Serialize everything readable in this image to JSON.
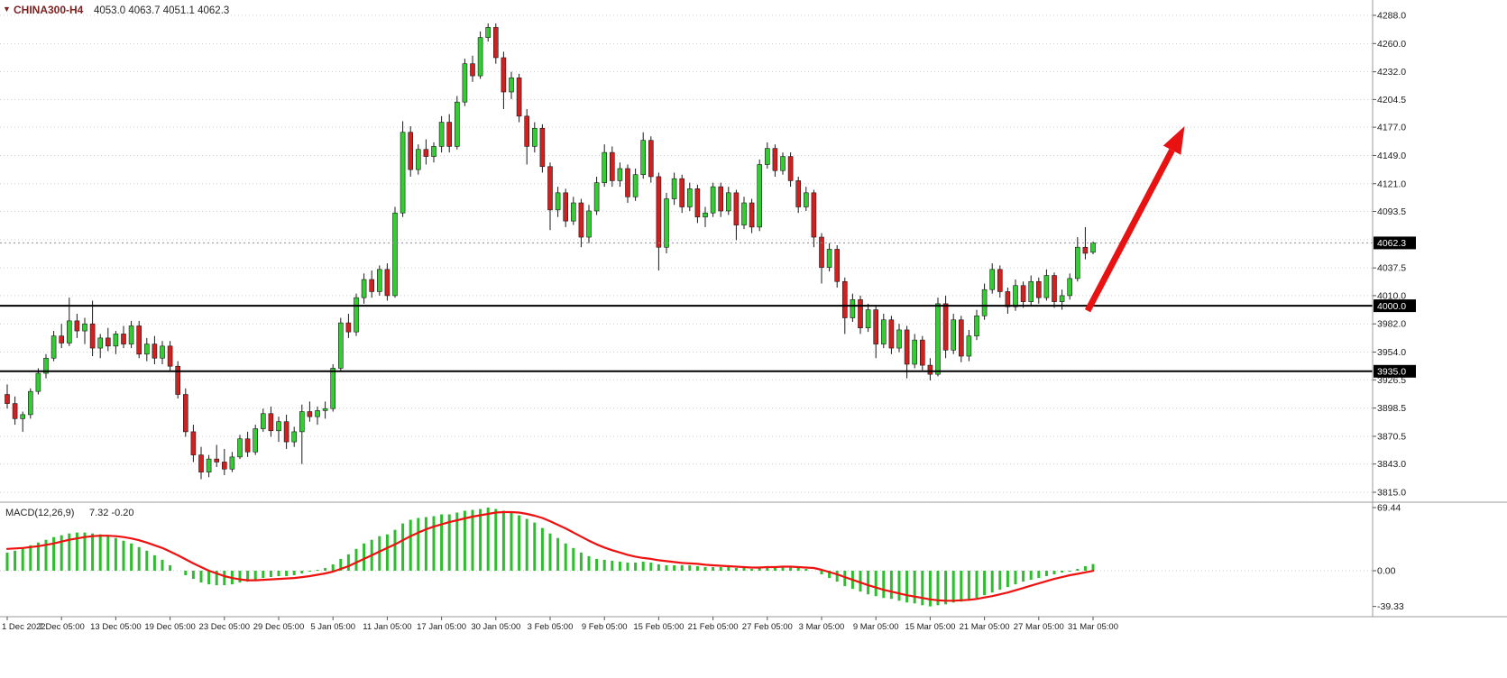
{
  "header": {
    "marker": "▼",
    "symbol": "CHINA300-H4",
    "ohlc_text": "4053.0 4063.7 4051.1 4062.3"
  },
  "macd_header": {
    "label": "MACD(12,26,9)",
    "values_text": "7.32 -0.20"
  },
  "chart_data": [
    {
      "id": "price",
      "type": "candlestick",
      "title": "CHINA300-H4",
      "symbol": "CHINA300",
      "timeframe": "H4",
      "last_ohlc": {
        "open": 4053.0,
        "high": 4063.7,
        "low": 4051.1,
        "close": 4062.3
      },
      "current_price": 4062.3,
      "horizontal_levels": [
        4000.0,
        3935.0
      ],
      "colors": {
        "up": "#33cc33",
        "down": "#d02020",
        "outline": "#1a1a1a",
        "level_line": "#000000",
        "arrow": "#e81212"
      },
      "y_axis": {
        "min": 3815,
        "max": 4288,
        "ticks": [
          {
            "label": "4288.0",
            "value": 4288
          },
          {
            "label": "4260.0",
            "value": 4260
          },
          {
            "label": "4232.0",
            "value": 4232
          },
          {
            "label": "4204.5",
            "value": 4204.5
          },
          {
            "label": "4177.0",
            "value": 4177
          },
          {
            "label": "4149.0",
            "value": 4149
          },
          {
            "label": "4121.0",
            "value": 4121
          },
          {
            "label": "4093.5",
            "value": 4093.5
          },
          {
            "label": "",
            "value": 4065.5
          },
          {
            "label": "4037.5",
            "value": 4037.5
          },
          {
            "label": "4010.0",
            "value": 4010
          },
          {
            "label": "3982.0",
            "value": 3982
          },
          {
            "label": "3954.0",
            "value": 3954
          },
          {
            "label": "3926.5",
            "value": 3926.5
          },
          {
            "label": "3898.5",
            "value": 3898.5
          },
          {
            "label": "3870.5",
            "value": 3870.5
          },
          {
            "label": "3843.0",
            "value": 3843
          },
          {
            "label": "3815.0",
            "value": 3815
          }
        ],
        "tags": [
          {
            "label": "4062.3",
            "value": 4062.3,
            "kind": "current-price"
          },
          {
            "label": "4000.0",
            "value": 4000,
            "kind": "level-4000"
          },
          {
            "label": "3935.0",
            "value": 3935,
            "kind": "level-3935"
          }
        ]
      },
      "x_labels": [
        "1 Dec 2022",
        "7 Dec 05:00",
        "13 Dec 05:00",
        "19 Dec 05:00",
        "23 Dec 05:00",
        "29 Dec 05:00",
        "5 Jan 05:00",
        "11 Jan 05:00",
        "17 Jan 05:00",
        "30 Jan 05:00",
        "3 Feb 05:00",
        "9 Feb 05:00",
        "15 Feb 05:00",
        "21 Feb 05:00",
        "27 Feb 05:00",
        "3 Mar 05:00",
        "9 Mar 05:00",
        "15 Mar 05:00",
        "21 Mar 05:00",
        "27 Mar 05:00",
        "31 Mar 05:00"
      ],
      "annotations": {
        "trend_arrow": {
          "from_index": 139.3,
          "from_price": 3995,
          "to_index": 151.8,
          "to_price": 4178,
          "color": "#e81212",
          "meaning": "bullish projection from 4000 support"
        }
      },
      "candles": [
        [
          3912,
          3922,
          3898,
          3903
        ],
        [
          3903,
          3910,
          3882,
          3888
        ],
        [
          3888,
          3895,
          3875,
          3892
        ],
        [
          3892,
          3918,
          3888,
          3915
        ],
        [
          3915,
          3938,
          3912,
          3933
        ],
        [
          3933,
          3952,
          3928,
          3948
        ],
        [
          3948,
          3975,
          3945,
          3970
        ],
        [
          3970,
          3982,
          3958,
          3963
        ],
        [
          3963,
          4008,
          3960,
          3985
        ],
        [
          3985,
          3992,
          3968,
          3975
        ],
        [
          3975,
          3988,
          3962,
          3982
        ],
        [
          3982,
          4005,
          3950,
          3958
        ],
        [
          3958,
          3972,
          3948,
          3968
        ],
        [
          3968,
          3978,
          3955,
          3960
        ],
        [
          3960,
          3975,
          3952,
          3972
        ],
        [
          3972,
          3980,
          3958,
          3962
        ],
        [
          3962,
          3985,
          3958,
          3980
        ],
        [
          3980,
          3985,
          3948,
          3952
        ],
        [
          3952,
          3968,
          3945,
          3962
        ],
        [
          3962,
          3970,
          3942,
          3948
        ],
        [
          3948,
          3965,
          3942,
          3960
        ],
        [
          3960,
          3965,
          3935,
          3940
        ],
        [
          3940,
          3945,
          3908,
          3912
        ],
        [
          3912,
          3918,
          3870,
          3875
        ],
        [
          3875,
          3882,
          3845,
          3852
        ],
        [
          3852,
          3860,
          3828,
          3835
        ],
        [
          3835,
          3852,
          3830,
          3848
        ],
        [
          3848,
          3862,
          3840,
          3845
        ],
        [
          3845,
          3858,
          3832,
          3838
        ],
        [
          3838,
          3855,
          3835,
          3850
        ],
        [
          3850,
          3872,
          3848,
          3868
        ],
        [
          3868,
          3875,
          3850,
          3855
        ],
        [
          3855,
          3882,
          3852,
          3878
        ],
        [
          3878,
          3898,
          3875,
          3893
        ],
        [
          3893,
          3900,
          3870,
          3876
        ],
        [
          3876,
          3890,
          3865,
          3885
        ],
        [
          3885,
          3892,
          3858,
          3865
        ],
        [
          3865,
          3880,
          3860,
          3875
        ],
        [
          3875,
          3902,
          3843,
          3895
        ],
        [
          3895,
          3905,
          3885,
          3890
        ],
        [
          3890,
          3900,
          3882,
          3896
        ],
        [
          3896,
          3905,
          3888,
          3898
        ],
        [
          3898,
          3942,
          3895,
          3938
        ],
        [
          3938,
          3988,
          3935,
          3983
        ],
        [
          3983,
          3992,
          3968,
          3974
        ],
        [
          3974,
          4012,
          3970,
          4008
        ],
        [
          4008,
          4032,
          4002,
          4026
        ],
        [
          4026,
          4035,
          4008,
          4014
        ],
        [
          4014,
          4040,
          4010,
          4036
        ],
        [
          4036,
          4042,
          4005,
          4010
        ],
        [
          4010,
          4098,
          4008,
          4092
        ],
        [
          4092,
          4183,
          4088,
          4172
        ],
        [
          4172,
          4178,
          4128,
          4135
        ],
        [
          4135,
          4160,
          4130,
          4155
        ],
        [
          4155,
          4165,
          4140,
          4148
        ],
        [
          4148,
          4162,
          4142,
          4158
        ],
        [
          4158,
          4188,
          4152,
          4182
        ],
        [
          4182,
          4190,
          4152,
          4158
        ],
        [
          4158,
          4208,
          4155,
          4202
        ],
        [
          4202,
          4245,
          4198,
          4240
        ],
        [
          4240,
          4248,
          4222,
          4228
        ],
        [
          4228,
          4272,
          4225,
          4266
        ],
        [
          4266,
          4280,
          4262,
          4276
        ],
        [
          4276,
          4280,
          4240,
          4246
        ],
        [
          4246,
          4252,
          4195,
          4212
        ],
        [
          4212,
          4232,
          4205,
          4226
        ],
        [
          4226,
          4230,
          4182,
          4188
        ],
        [
          4188,
          4195,
          4140,
          4158
        ],
        [
          4158,
          4182,
          4152,
          4176
        ],
        [
          4176,
          4180,
          4132,
          4138
        ],
        [
          4138,
          4142,
          4075,
          4095
        ],
        [
          4095,
          4118,
          4088,
          4112
        ],
        [
          4112,
          4116,
          4078,
          4084
        ],
        [
          4084,
          4108,
          4080,
          4102
        ],
        [
          4102,
          4106,
          4058,
          4068
        ],
        [
          4068,
          4100,
          4062,
          4094
        ],
        [
          4094,
          4128,
          4090,
          4122
        ],
        [
          4122,
          4160,
          4118,
          4152
        ],
        [
          4152,
          4158,
          4118,
          4124
        ],
        [
          4124,
          4142,
          4118,
          4136
        ],
        [
          4136,
          4140,
          4102,
          4108
        ],
        [
          4108,
          4136,
          4104,
          4130
        ],
        [
          4130,
          4172,
          4126,
          4164
        ],
        [
          4164,
          4168,
          4122,
          4128
        ],
        [
          4128,
          4132,
          4035,
          4058
        ],
        [
          4058,
          4112,
          4052,
          4106
        ],
        [
          4106,
          4132,
          4100,
          4126
        ],
        [
          4126,
          4130,
          4092,
          4098
        ],
        [
          4098,
          4122,
          4094,
          4116
        ],
        [
          4116,
          4120,
          4082,
          4088
        ],
        [
          4088,
          4098,
          4078,
          4092
        ],
        [
          4092,
          4122,
          4088,
          4118
        ],
        [
          4118,
          4122,
          4088,
          4094
        ],
        [
          4094,
          4118,
          4090,
          4112
        ],
        [
          4112,
          4115,
          4065,
          4080
        ],
        [
          4080,
          4108,
          4076,
          4102
        ],
        [
          4102,
          4106,
          4072,
          4078
        ],
        [
          4078,
          4145,
          4074,
          4140
        ],
        [
          4140,
          4162,
          4136,
          4156
        ],
        [
          4156,
          4160,
          4128,
          4134
        ],
        [
          4134,
          4152,
          4130,
          4148
        ],
        [
          4148,
          4152,
          4118,
          4124
        ],
        [
          4124,
          4128,
          4092,
          4098
        ],
        [
          4098,
          4118,
          4094,
          4112
        ],
        [
          4112,
          4115,
          4058,
          4068
        ],
        [
          4068,
          4072,
          4022,
          4038
        ],
        [
          4038,
          4062,
          4034,
          4056
        ],
        [
          4056,
          4060,
          4018,
          4024
        ],
        [
          4024,
          4028,
          3972,
          3988
        ],
        [
          3988,
          4012,
          3984,
          4006
        ],
        [
          4006,
          4010,
          3972,
          3978
        ],
        [
          3978,
          4002,
          3974,
          3996
        ],
        [
          3996,
          4000,
          3948,
          3962
        ],
        [
          3962,
          3992,
          3958,
          3986
        ],
        [
          3986,
          3990,
          3952,
          3958
        ],
        [
          3958,
          3982,
          3954,
          3976
        ],
        [
          3976,
          3980,
          3928,
          3942
        ],
        [
          3942,
          3972,
          3938,
          3966
        ],
        [
          3966,
          3970,
          3936,
          3941
        ],
        [
          3941,
          3948,
          3926,
          3932
        ],
        [
          3932,
          4008,
          3930,
          4002
        ],
        [
          4002,
          4010,
          3948,
          3956
        ],
        [
          3956,
          3992,
          3952,
          3986
        ],
        [
          3986,
          3990,
          3944,
          3950
        ],
        [
          3950,
          3976,
          3945,
          3970
        ],
        [
          3970,
          3996,
          3966,
          3990
        ],
        [
          3990,
          4022,
          3986,
          4016
        ],
        [
          4016,
          4042,
          4012,
          4036
        ],
        [
          4036,
          4040,
          4008,
          4014
        ],
        [
          4014,
          4018,
          3992,
          3999
        ],
        [
          3999,
          4026,
          3995,
          4020
        ],
        [
          4020,
          4024,
          3998,
          4004
        ],
        [
          4004,
          4030,
          4000,
          4024
        ],
        [
          4024,
          4028,
          4002,
          4008
        ],
        [
          4008,
          4036,
          4005,
          4030
        ],
        [
          4030,
          4033,
          3998,
          4004
        ],
        [
          4004,
          4016,
          3996,
          4010
        ],
        [
          4010,
          4032,
          4006,
          4027
        ],
        [
          4027,
          4068,
          4024,
          4058
        ],
        [
          4058,
          4078,
          4046,
          4052
        ],
        [
          4053,
          4063.7,
          4051.1,
          4062.3
        ]
      ]
    },
    {
      "id": "macd",
      "type": "bar",
      "label": "MACD(12,26,9)",
      "params": [
        12,
        26,
        9
      ],
      "current_macd": 7.32,
      "current_signal": -0.2,
      "colors": {
        "histogram": "#2ebd2e",
        "signal": "#ef1010"
      },
      "y_ticks": [
        {
          "label": "69.44",
          "value": 69.44
        },
        {
          "label": "0.00",
          "value": 0
        },
        {
          "label": "-39.33",
          "value": -39.33
        }
      ],
      "histogram": [
        20,
        22,
        25,
        28,
        31,
        34,
        37,
        39,
        41,
        42,
        42,
        41,
        40,
        38,
        36,
        33,
        30,
        26,
        22,
        17,
        12,
        6,
        0,
        -5,
        -9,
        -13,
        -15,
        -16,
        -16,
        -15,
        -13,
        -12,
        -10,
        -8,
        -7,
        -6,
        -6,
        -5,
        -3,
        -1,
        1,
        3,
        7,
        13,
        18,
        24,
        30,
        34,
        38,
        40,
        45,
        52,
        56,
        58,
        59,
        60,
        62,
        62,
        64,
        66,
        67,
        68,
        69.4,
        68,
        66,
        64,
        61,
        57,
        53,
        47,
        41,
        36,
        30,
        25,
        20,
        16,
        13,
        12,
        11,
        10,
        9,
        9,
        10,
        9,
        7,
        6,
        6,
        6,
        6,
        5,
        4,
        4,
        4,
        4,
        3,
        3,
        2,
        3,
        5,
        5,
        5,
        4,
        3,
        2,
        0,
        -4,
        -8,
        -12,
        -17,
        -20,
        -23,
        -26,
        -28,
        -30,
        -31,
        -33,
        -35,
        -36,
        -38,
        -39.3,
        -38,
        -37,
        -35,
        -34,
        -32,
        -30,
        -27,
        -24,
        -21,
        -18,
        -15,
        -12,
        -10,
        -8,
        -6,
        -4,
        -2,
        -1,
        2,
        5,
        7.32
      ],
      "signal": [
        24,
        24.5,
        25,
        26,
        27,
        28.5,
        30,
        32,
        34,
        35.5,
        37,
        38,
        38.5,
        38.5,
        38,
        37,
        35.5,
        33.5,
        31,
        28,
        25,
        21,
        17,
        12.5,
        8,
        4,
        0,
        -3,
        -6,
        -8,
        -9.5,
        -10.5,
        -10.5,
        -10,
        -9.5,
        -9,
        -8.5,
        -8,
        -7,
        -6,
        -4.5,
        -3,
        -1,
        2,
        5,
        9,
        13,
        17,
        21,
        25,
        29,
        33.5,
        38,
        42,
        45.5,
        48.5,
        51,
        53.5,
        55.5,
        57.5,
        59.5,
        61,
        62.5,
        64,
        64.5,
        64.5,
        64,
        62.5,
        60.5,
        58,
        54.5,
        50.5,
        46.5,
        42,
        37.5,
        33,
        29,
        25.5,
        22.5,
        20,
        17.5,
        15.5,
        14,
        13,
        11.5,
        10.5,
        9.5,
        8.5,
        8,
        7.5,
        6.5,
        6,
        5.5,
        5,
        4.5,
        4,
        3.5,
        3.5,
        4,
        4,
        4.5,
        4.5,
        4,
        3.5,
        3,
        1,
        -1.5,
        -4,
        -7,
        -10,
        -13,
        -16,
        -18.5,
        -21,
        -23,
        -25,
        -27,
        -28.5,
        -30,
        -31.5,
        -32.5,
        -33,
        -33,
        -32.5,
        -32,
        -31,
        -29.5,
        -28,
        -26,
        -24,
        -21.5,
        -19,
        -16.5,
        -14,
        -11.5,
        -9,
        -7,
        -5,
        -3.5,
        -1.8,
        -0.2
      ]
    }
  ]
}
